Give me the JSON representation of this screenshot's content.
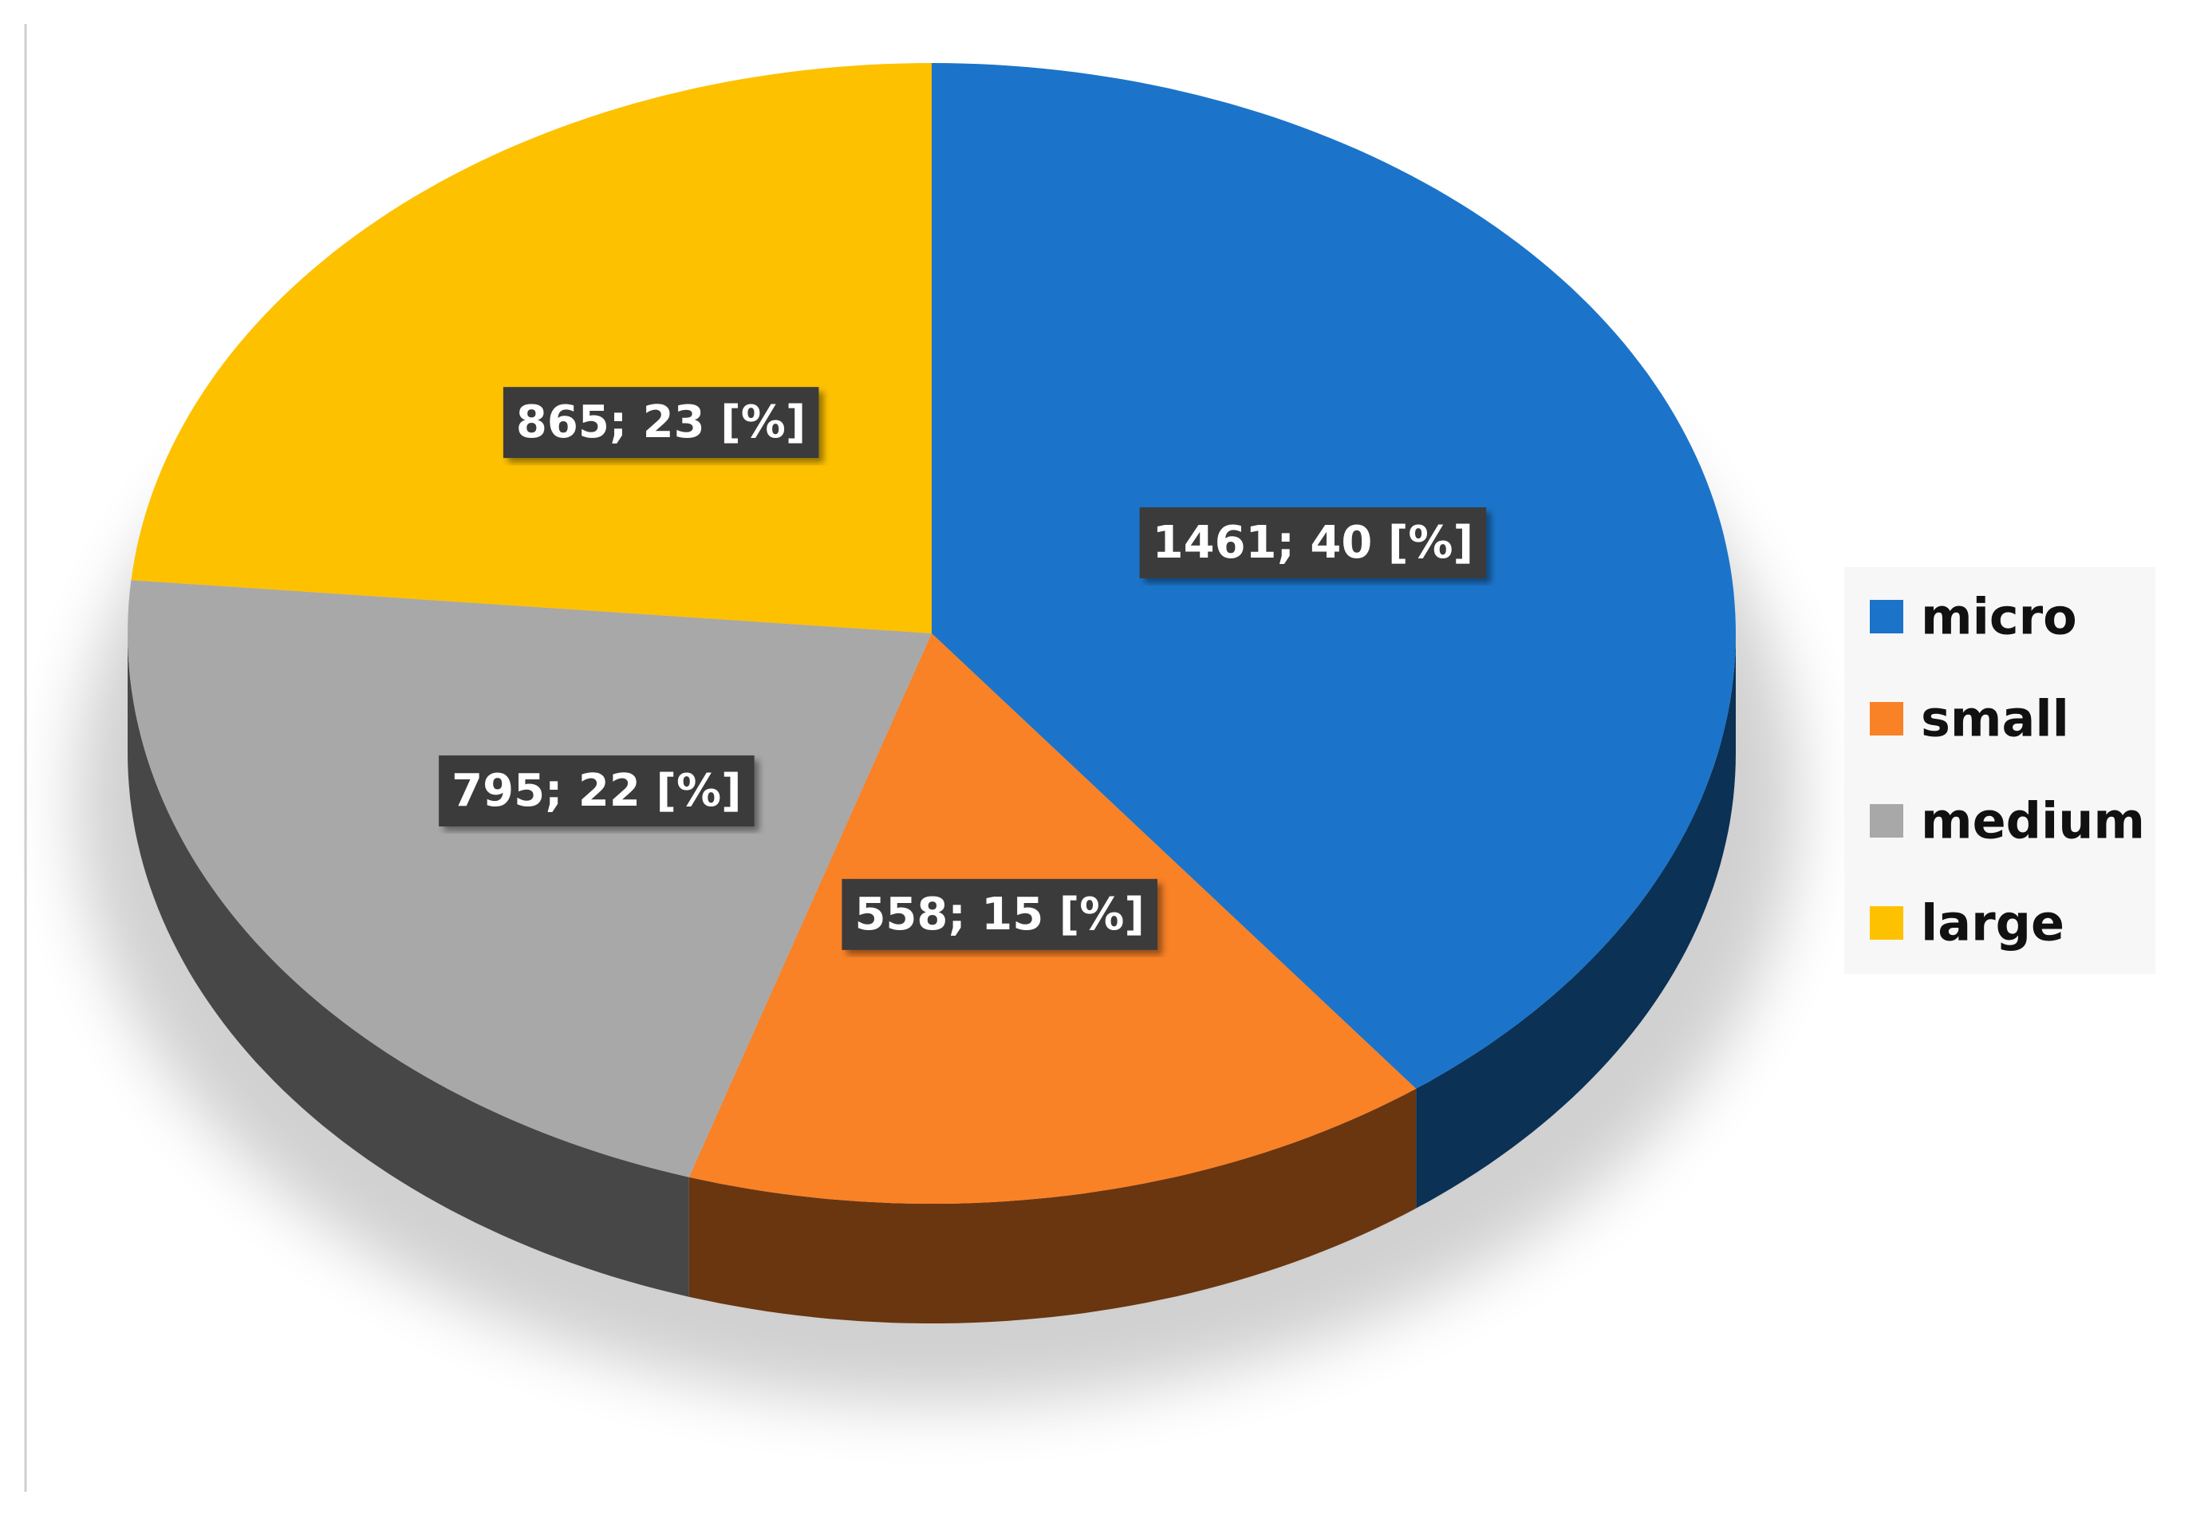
{
  "chart_data": {
    "type": "pie3d",
    "categories": [
      "micro",
      "small",
      "medium",
      "large"
    ],
    "values": [
      1461,
      558,
      795,
      865
    ],
    "value_labels": [
      "1461; 40 [%]",
      "558; 15 [%]",
      "795; 22 [%]",
      "865; 23 [%]"
    ],
    "colors": [
      "#1b74c9",
      "#f98126",
      "#a8a8a8",
      "#fdc100"
    ],
    "legend": "right"
  }
}
